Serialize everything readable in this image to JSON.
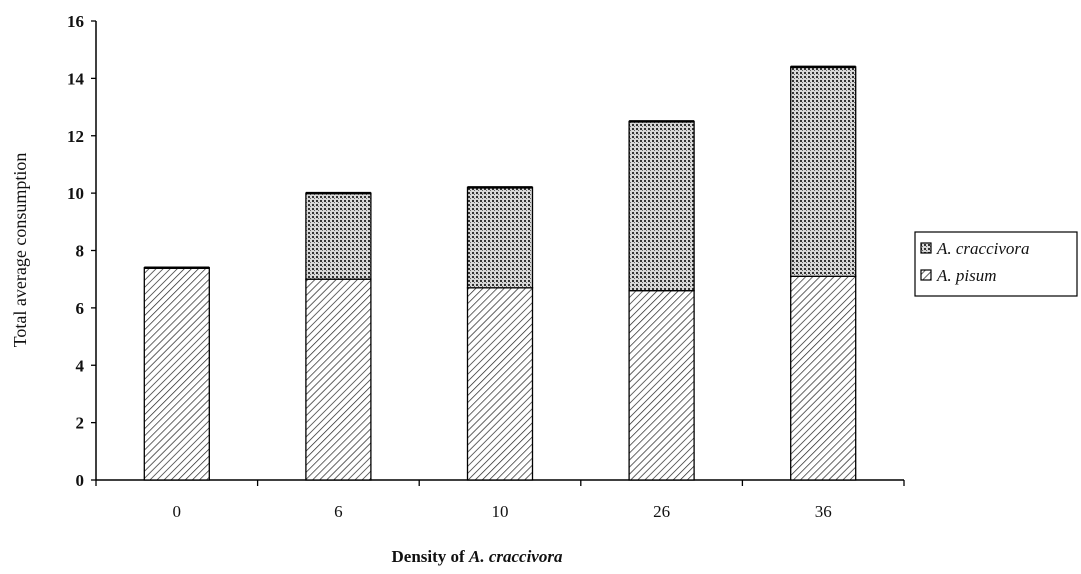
{
  "chart_data": {
    "type": "bar",
    "stacked": true,
    "categories": [
      "0",
      "6",
      "10",
      "26",
      "36"
    ],
    "series": [
      {
        "name": "A. pisum",
        "values": [
          7.4,
          7.0,
          6.7,
          6.6,
          7.1
        ],
        "pattern": "diagonal-hatch"
      },
      {
        "name": "A. craccivora",
        "values": [
          0.0,
          3.0,
          3.5,
          5.9,
          7.3
        ],
        "pattern": "dotted-crosshatch"
      }
    ],
    "ylabel": "Total average consumption",
    "xlabel_prefix": "Density of ",
    "xlabel_italic": "A. craccivora",
    "ylim": [
      0,
      16
    ],
    "yticks": [
      "0",
      "2",
      "4",
      "6",
      "8",
      "10",
      "12",
      "14",
      "16"
    ],
    "grid": false,
    "legend_position": "right",
    "legend": [
      {
        "label": "A. craccivora"
      },
      {
        "label": "A. pisum"
      }
    ]
  }
}
